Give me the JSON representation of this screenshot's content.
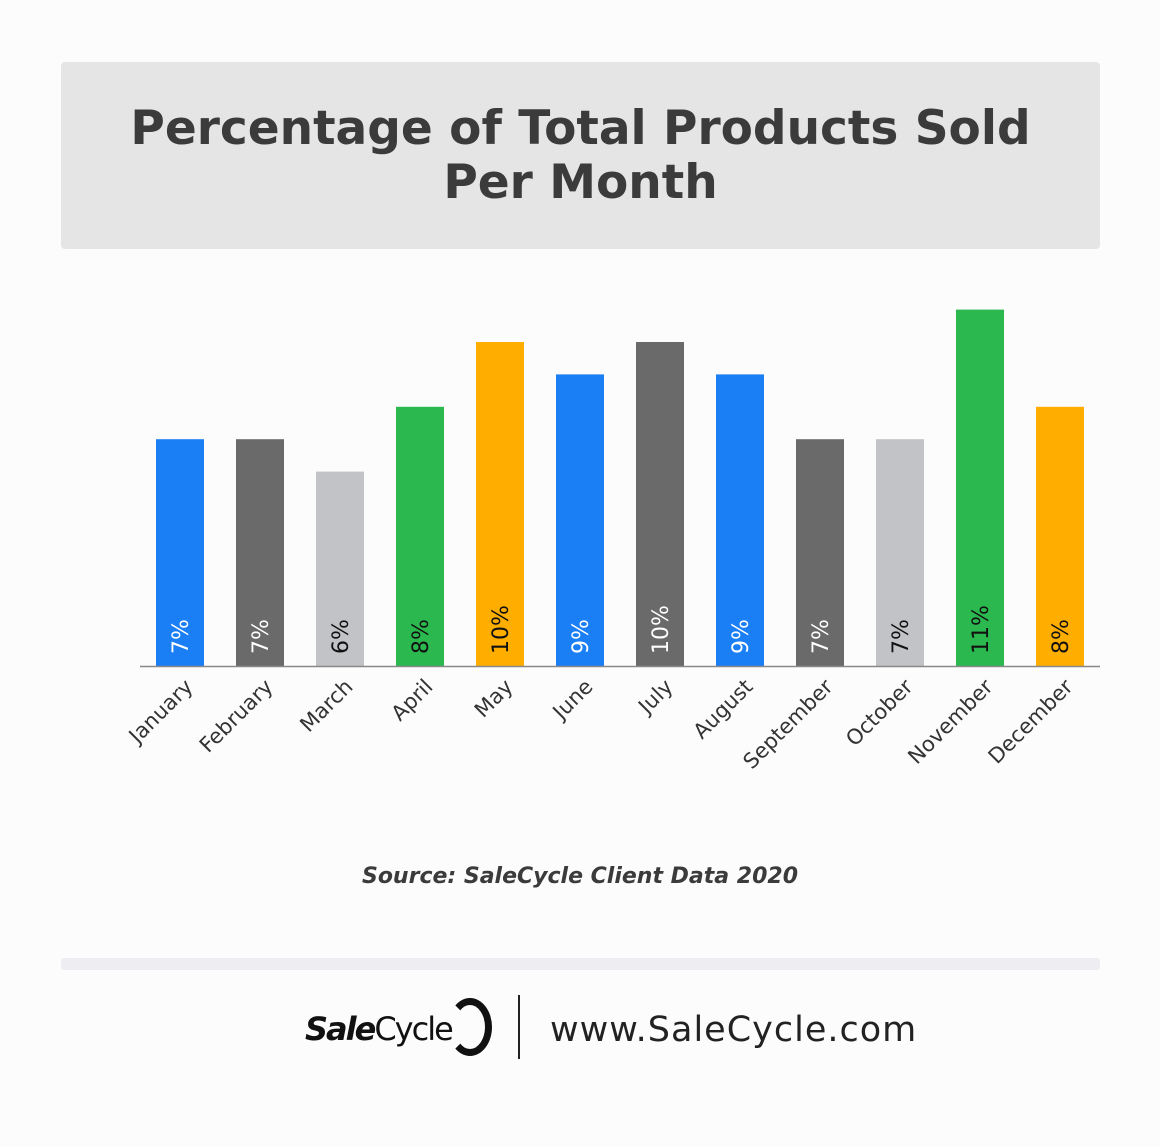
{
  "chart_data": {
    "type": "bar",
    "title": "Percentage of Total Products Sold Per Month",
    "categories": [
      "January",
      "February",
      "March",
      "April",
      "May",
      "June",
      "July",
      "August",
      "September",
      "October",
      "November",
      "December"
    ],
    "values": [
      7,
      7,
      6,
      8,
      10,
      9,
      10,
      9,
      7,
      7,
      11,
      8
    ],
    "value_labels": [
      "7%",
      "7%",
      "6%",
      "8%",
      "10%",
      "9%",
      "10%",
      "9%",
      "7%",
      "7%",
      "11%",
      "8%"
    ],
    "colors": [
      "#1a7ef5",
      "#6a6a6b",
      "#c1c3c6",
      "#2bb84f",
      "#ffae00",
      "#1a7ef5",
      "#6a6a6b",
      "#1a7ef5",
      "#6a6a6b",
      "#c1c3c6",
      "#2bb84f",
      "#ffae00"
    ],
    "label_colors": [
      "#ffffff",
      "#ffffff",
      "#111111",
      "#111111",
      "#111111",
      "#ffffff",
      "#ffffff",
      "#ffffff",
      "#ffffff",
      "#111111",
      "#111111",
      "#111111"
    ],
    "xlabel": "",
    "ylabel": "",
    "ylim": [
      0,
      11
    ],
    "grid": false,
    "legend": "none"
  },
  "source": "Source: SaleCycle Client Data 2020",
  "footer": {
    "logo_bold": "Sale",
    "logo_light": "Cycle",
    "url": "www.SaleCycle.com"
  }
}
